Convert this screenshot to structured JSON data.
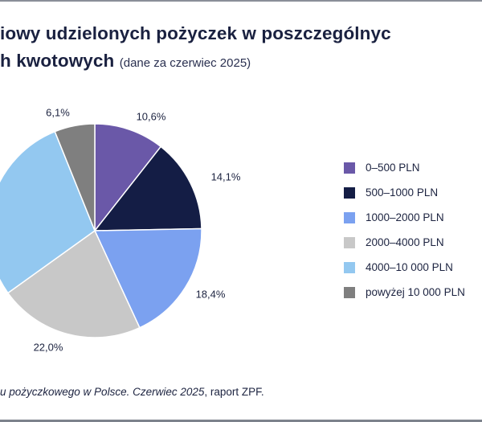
{
  "title": {
    "line1": "iowy udzielonych pożyczek w poszczególnyc",
    "line2": "h kwotowych",
    "subtitle": "(dane za czerwiec 2025)"
  },
  "source": {
    "italic_part": "u pożyczkowego w Polsce. Czerwiec 2025",
    "rest": ", raport ZPF."
  },
  "chart_data": {
    "type": "pie",
    "title": "iowy udzielonych pożyczek w poszczególnych kwotowych (dane za czerwiec 2025)",
    "legend_position": "right",
    "start_angle_deg": 0,
    "direction": "clockwise",
    "slices": [
      {
        "label": "0–500 PLN",
        "value": 10.6,
        "display": "10,6%",
        "color": "#6a58a8"
      },
      {
        "label": "500–1000 PLN",
        "value": 14.1,
        "display": "14,1%",
        "color": "#141d45"
      },
      {
        "label": "1000–2000 PLN",
        "value": 18.4,
        "display": "18,4%",
        "color": "#7ba1f0"
      },
      {
        "label": "2000–4000 PLN",
        "value": 22.0,
        "display": "22,0%",
        "color": "#c8c8c8"
      },
      {
        "label": "4000–10 000 PLN",
        "value": 28.8,
        "display": "",
        "color": "#93c8f0"
      },
      {
        "label": "powyżej 10 000 PLN",
        "value": 6.1,
        "display": "6,1%",
        "color": "#7f7f7f"
      }
    ]
  }
}
